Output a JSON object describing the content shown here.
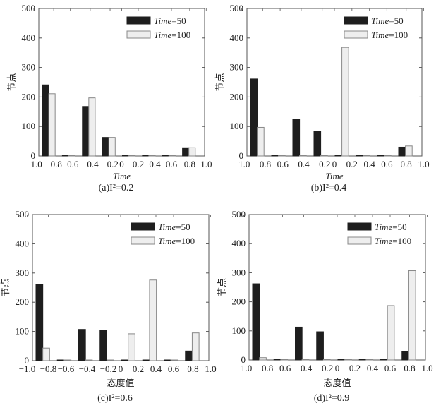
{
  "chart_data": [
    {
      "type": "bar",
      "caption": "(a)I²=0.2",
      "xlabel": "Time",
      "ylabel": "节点",
      "ylim": [
        0,
        500
      ],
      "yticks": [
        0,
        100,
        200,
        300,
        400,
        500
      ],
      "xticks": [
        "−1.0",
        "−0.8",
        "−0.6",
        "−0.4",
        "−0.2",
        "0",
        "0.2",
        "0.4",
        "0.6",
        "0.8",
        "1.0"
      ],
      "legend": "top-right",
      "series": [
        {
          "name": "Time=50",
          "color": "#1e1e1e",
          "values": [
            241,
            0,
            168,
            63,
            0,
            0,
            0,
            28
          ]
        },
        {
          "name": "Time=100",
          "color": "#eeeeee",
          "values": [
            211,
            0,
            197,
            63,
            0,
            0,
            0,
            28
          ]
        }
      ]
    },
    {
      "type": "bar",
      "caption": "(b)I²=0.4",
      "xlabel": "Time",
      "ylabel": "节点",
      "ylim": [
        0,
        500
      ],
      "yticks": [
        0,
        100,
        200,
        300,
        400,
        500
      ],
      "xticks": [
        "−1.0",
        "−0.8",
        "−0.6",
        "−0.4",
        "−0.2",
        "0",
        "0.2",
        "0.4",
        "0.6",
        "0.8",
        "1.0"
      ],
      "legend": "top-right",
      "series": [
        {
          "name": "Time=50",
          "color": "#1e1e1e",
          "values": [
            261,
            0,
            124,
            83,
            0,
            0,
            0,
            30
          ]
        },
        {
          "name": "Time=100",
          "color": "#eeeeee",
          "values": [
            97,
            0,
            0,
            0,
            368,
            0,
            0,
            34
          ]
        }
      ]
    },
    {
      "type": "bar",
      "caption": "(c)I²=0.6",
      "xlabel": "态度值",
      "ylabel": "节点",
      "ylim": [
        0,
        500
      ],
      "yticks": [
        0,
        100,
        200,
        300,
        400,
        500
      ],
      "xticks": [
        "−1.0",
        "−0.8",
        "−0.6",
        "−0.4",
        "−0.2",
        "0",
        "0.2",
        "0.4",
        "0.6",
        "0.8",
        "1.0"
      ],
      "legend": "top-right",
      "series": [
        {
          "name": "Time=50",
          "color": "#1e1e1e",
          "values": [
            261,
            0,
            107,
            104,
            0,
            0,
            0,
            33
          ]
        },
        {
          "name": "Time=100",
          "color": "#eeeeee",
          "values": [
            43,
            0,
            0,
            0,
            92,
            276,
            0,
            95
          ]
        }
      ]
    },
    {
      "type": "bar",
      "caption": "(d)I²=0.9",
      "xlabel": "态度值",
      "ylabel": "节点",
      "ylim": [
        0,
        500
      ],
      "yticks": [
        0,
        100,
        200,
        300,
        400,
        500
      ],
      "xticks": [
        "−1.0",
        "−0.8",
        "−0.6",
        "−0.4",
        "−0.2",
        "0",
        "0.2",
        "0.4",
        "0.6",
        "0.8",
        "1.0"
      ],
      "legend": "top-right",
      "series": [
        {
          "name": "Time=50",
          "color": "#1e1e1e",
          "values": [
            262,
            0,
            113,
            97,
            0,
            0,
            0,
            30
          ]
        },
        {
          "name": "Time=100",
          "color": "#eeeeee",
          "values": [
            8,
            0,
            0,
            0,
            0,
            0,
            187,
            307
          ]
        }
      ]
    }
  ]
}
